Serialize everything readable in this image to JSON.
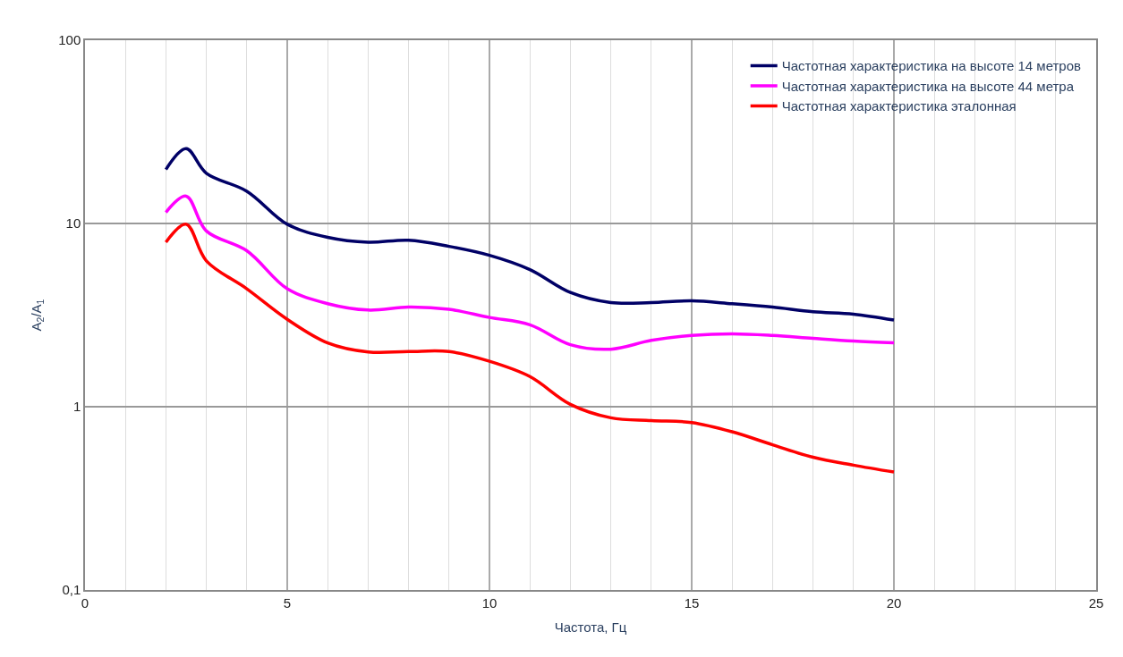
{
  "chart_data": {
    "type": "line",
    "xlabel": "Частота, Гц",
    "ylabel": "A$_{2}$/A$_{1}$",
    "x": [
      2,
      2.5,
      3,
      4,
      5,
      6,
      7,
      8,
      9,
      10,
      11,
      12,
      13,
      14,
      15,
      16,
      17,
      18,
      19,
      20
    ],
    "series": [
      {
        "name": "Частотная характеристика на высоте 14 метров",
        "color": "#000066",
        "values": [
          19.7,
          25.6,
          18.8,
          15,
          9.9,
          8.4,
          7.9,
          8.1,
          7.5,
          6.7,
          5.6,
          4.2,
          3.7,
          3.7,
          3.78,
          3.65,
          3.5,
          3.3,
          3.2,
          2.97
        ]
      },
      {
        "name": "Частотная характеристика на высоте 44 метра",
        "color": "#ff00ff",
        "values": [
          11.5,
          14.1,
          9.1,
          7.1,
          4.4,
          3.65,
          3.37,
          3.5,
          3.4,
          3.07,
          2.8,
          2.18,
          2.06,
          2.3,
          2.45,
          2.5,
          2.45,
          2.36,
          2.28,
          2.23
        ]
      },
      {
        "name": "Частотная характеристика эталонная",
        "color": "#ff0000",
        "values": [
          7.9,
          9.9,
          6.25,
          4.4,
          3.0,
          2.23,
          1.99,
          2.0,
          2.0,
          1.77,
          1.46,
          1.03,
          0.87,
          0.84,
          0.82,
          0.73,
          0.62,
          0.53,
          0.48,
          0.44
        ]
      }
    ],
    "xlim": [
      0,
      25
    ],
    "xticks": [
      0,
      5,
      10,
      15,
      20,
      25
    ],
    "ylim": [
      0.1,
      100
    ],
    "yticks": [
      {
        "value": 0.1,
        "label": "0,1"
      },
      1,
      10,
      100
    ],
    "log": "y",
    "grid": true,
    "legend": "top right",
    "marker": "none",
    "line_style": "solid"
  }
}
